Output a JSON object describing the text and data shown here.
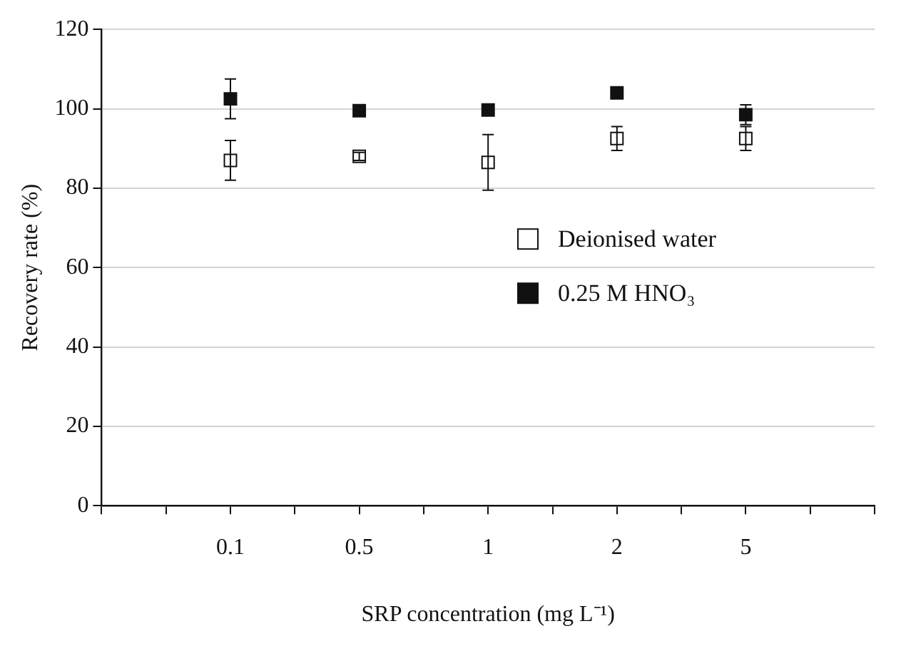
{
  "chart_data": {
    "type": "scatter",
    "xlabel": "SRP concentration (mg L⁻¹)",
    "ylabel": "Recovery rate (%)",
    "categories": [
      "0.1",
      "0.5",
      "1",
      "2",
      "5"
    ],
    "series": [
      {
        "name": "Deionised water",
        "color": "#ffffff",
        "values": [
          87,
          88,
          86.5,
          92.5,
          92.5
        ],
        "errors": [
          5,
          1,
          7,
          3,
          3
        ]
      },
      {
        "name": "0.25 M HNO₃",
        "color": "#111111",
        "values": [
          102.5,
          99.5,
          99.7,
          104,
          98.5
        ],
        "errors": [
          5,
          null,
          null,
          null,
          2.5
        ]
      }
    ],
    "ylim": [
      0,
      120
    ],
    "yticks": [
      0,
      20,
      40,
      60,
      80,
      100,
      120
    ],
    "grid": "y",
    "legend": "right",
    "marker": "square"
  }
}
